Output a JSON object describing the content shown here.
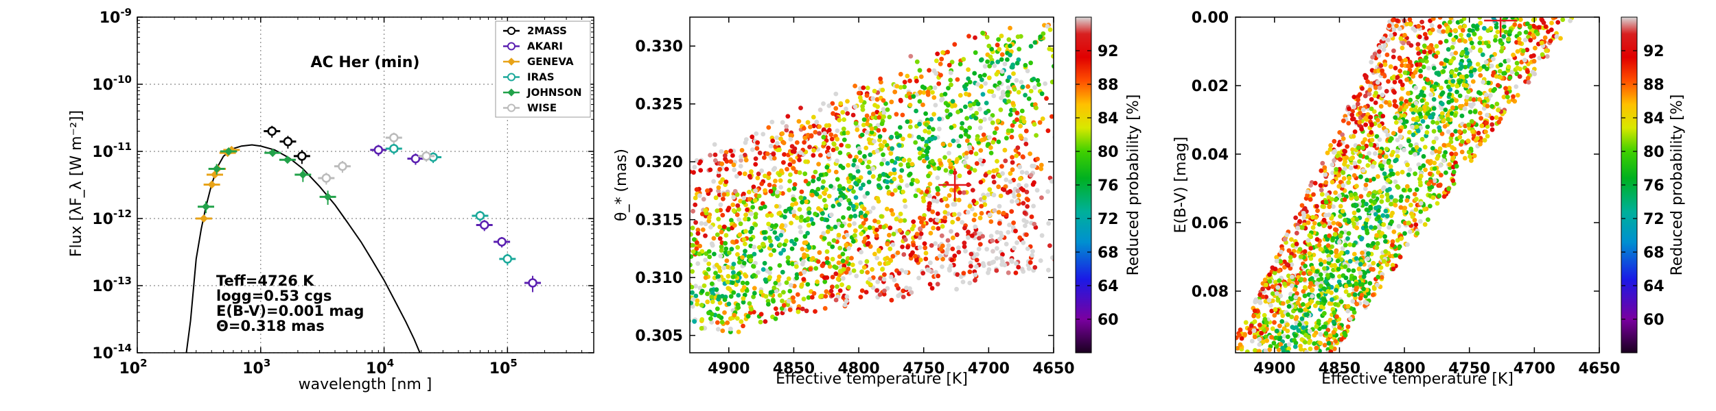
{
  "chart_data": [
    {
      "type": "scatter",
      "panel": "sed",
      "title": "AC Her (min)",
      "xlabel": "wavelength [nm ]",
      "ylabel": "Flux [λF_λ [W m⁻²]]",
      "xscale": "log",
      "yscale": "log",
      "xlim": [
        100,
        500000
      ],
      "ylim": [
        1e-14,
        1e-09
      ],
      "grid": true,
      "legend_position": "top-right",
      "x_ticks": [
        {
          "value": 100,
          "base": "10",
          "exp": "2"
        },
        {
          "value": 1000,
          "base": "10",
          "exp": "3"
        },
        {
          "value": 10000,
          "base": "10",
          "exp": "4"
        },
        {
          "value": 100000,
          "base": "10",
          "exp": "5"
        }
      ],
      "y_ticks": [
        {
          "value": 1e-14,
          "base": "10",
          "exp": "-14"
        },
        {
          "value": 1e-13,
          "base": "10",
          "exp": "-13"
        },
        {
          "value": 1e-12,
          "base": "10",
          "exp": "-12"
        },
        {
          "value": 1e-11,
          "base": "10",
          "exp": "-11"
        },
        {
          "value": 1e-10,
          "base": "10",
          "exp": "-10"
        },
        {
          "value": 1e-09,
          "base": "10",
          "exp": "-9"
        }
      ],
      "annotations": [
        "Teff=4726 K",
        "logg=0.53 cgs",
        "E(B-V)=0.001 mag",
        "Θ=0.318 mas"
      ],
      "series": [
        {
          "name": "2MASS",
          "color": "#000000",
          "marker": "circle",
          "points": [
            [
              1235,
              2e-11,
              4e-12
            ],
            [
              1662,
              1.4e-11,
              3e-12
            ],
            [
              2159,
              8.5e-12,
              2e-12
            ]
          ]
        },
        {
          "name": "AKARI",
          "color": "#5a1fb0",
          "marker": "circle",
          "points": [
            [
              9000,
              1.05e-11,
              2e-12
            ],
            [
              18000,
              7.8e-12,
              1.5e-12
            ],
            [
              65000,
              8e-13,
              1.5e-13
            ],
            [
              90000,
              4.5e-13,
              8e-14
            ],
            [
              160000,
              1.1e-13,
              3e-14
            ]
          ]
        },
        {
          "name": "GENEVA",
          "color": "#e8a318",
          "marker": "diamond",
          "points": [
            [
              346,
              1e-12,
              0
            ],
            [
              402,
              3.2e-12,
              0
            ],
            [
              425,
              4.5e-12,
              0
            ],
            [
              448,
              5.5e-12,
              0
            ],
            [
              540,
              9.5e-12,
              0
            ],
            [
              550,
              1e-11,
              0
            ],
            [
              581,
              1.05e-11,
              0
            ]
          ]
        },
        {
          "name": "IRAS",
          "color": "#1aa89a",
          "marker": "circle",
          "points": [
            [
              12000,
              1.1e-11,
              2e-12
            ],
            [
              25000,
              8.2e-12,
              1.5e-12
            ],
            [
              60000,
              1.1e-12,
              2e-13
            ],
            [
              100000,
              2.5e-13,
              5e-14
            ]
          ]
        },
        {
          "name": "JOHNSON",
          "color": "#22a24a",
          "marker": "diamond",
          "points": [
            [
              360,
              1.5e-12,
              3e-13
            ],
            [
              440,
              5.5e-12,
              1e-12
            ],
            [
              550,
              1e-11,
              0
            ],
            [
              1250,
              9.5e-12,
              0
            ],
            [
              1650,
              7.5e-12,
              0
            ],
            [
              2200,
              4.5e-12,
              1e-12
            ],
            [
              3500,
              2.1e-12,
              5e-13
            ]
          ]
        },
        {
          "name": "WISE",
          "color": "#bbbbbb",
          "marker": "circle",
          "points": [
            [
              3400,
              4e-12,
              8e-13
            ],
            [
              4600,
              6e-12,
              1.2e-12
            ],
            [
              12000,
              1.6e-11,
              3e-12
            ],
            [
              22000,
              8.5e-12,
              1.5e-12
            ]
          ]
        }
      ],
      "model_curve": [
        [
          250,
          1e-14
        ],
        [
          270,
          3e-14
        ],
        [
          300,
          2.5e-13
        ],
        [
          330,
          7e-13
        ],
        [
          360,
          1.5e-12
        ],
        [
          400,
          3.2e-12
        ],
        [
          450,
          6e-12
        ],
        [
          500,
          8.5e-12
        ],
        [
          600,
          1.1e-11
        ],
        [
          700,
          1.2e-11
        ],
        [
          850,
          1.25e-11
        ],
        [
          1000,
          1.2e-11
        ],
        [
          1300,
          1.05e-11
        ],
        [
          1700,
          8e-12
        ],
        [
          2200,
          5.5e-12
        ],
        [
          3000,
          3e-12
        ],
        [
          4000,
          1.6e-12
        ],
        [
          5000,
          9e-13
        ],
        [
          6500,
          4.5e-13
        ],
        [
          8000,
          2.4e-13
        ],
        [
          10000,
          1.2e-13
        ],
        [
          12500,
          5.5e-14
        ],
        [
          15000,
          2.9e-14
        ],
        [
          17500,
          1.6e-14
        ],
        [
          19500,
          1e-14
        ]
      ]
    },
    {
      "type": "scatter",
      "panel": "theta",
      "xlabel": "Effective temperature [K]",
      "ylabel": "θ_* (mas)",
      "xlim": [
        4930,
        4650
      ],
      "ylim": [
        0.3035,
        0.3325
      ],
      "x_ticks": [
        4900,
        4850,
        4800,
        4750,
        4700,
        4650
      ],
      "y_ticks": [
        "0.305",
        "0.310",
        "0.315",
        "0.320",
        "0.325",
        "0.330"
      ],
      "colorbar_label": "Reduced probability [%]",
      "colorbar_ticks": [
        60,
        64,
        68,
        72,
        76,
        80,
        84,
        88,
        92
      ],
      "colorbar_range": [
        56,
        96
      ],
      "best_fit": [
        4726,
        0.318
      ],
      "scatter_region": {
        "left_x": [
          4935,
          4890
        ],
        "right_x": [
          4760,
          4660
        ],
        "bottom_y": [
          0.305,
          0.311
        ],
        "top_y": [
          0.3195,
          0.3325
        ],
        "n_points": 2300
      }
    },
    {
      "type": "scatter",
      "panel": "ebv",
      "xlabel": "Effective temperature [K]",
      "ylabel": "E(B-V) [mag]",
      "xlim": [
        4930,
        4650
      ],
      "ylim": [
        0.098,
        0.0
      ],
      "x_ticks": [
        4900,
        4850,
        4800,
        4750,
        4700,
        4650
      ],
      "y_ticks": [
        "0.00",
        "0.02",
        "0.04",
        "0.06",
        "0.08"
      ],
      "colorbar_label": "Reduced probability [%]",
      "colorbar_ticks": [
        60,
        64,
        68,
        72,
        76,
        80,
        84,
        88,
        92
      ],
      "colorbar_range": [
        56,
        96
      ],
      "best_fit": [
        4726,
        0.001
      ],
      "scatter_region": {
        "left_x": [
          4935,
          4810
        ],
        "right_x": [
          4855,
          4670
        ],
        "bottom_y": [
          0.098,
          0.0
        ],
        "top_y": [
          0.0,
          0.0
        ],
        "n_points": 2300
      }
    }
  ]
}
